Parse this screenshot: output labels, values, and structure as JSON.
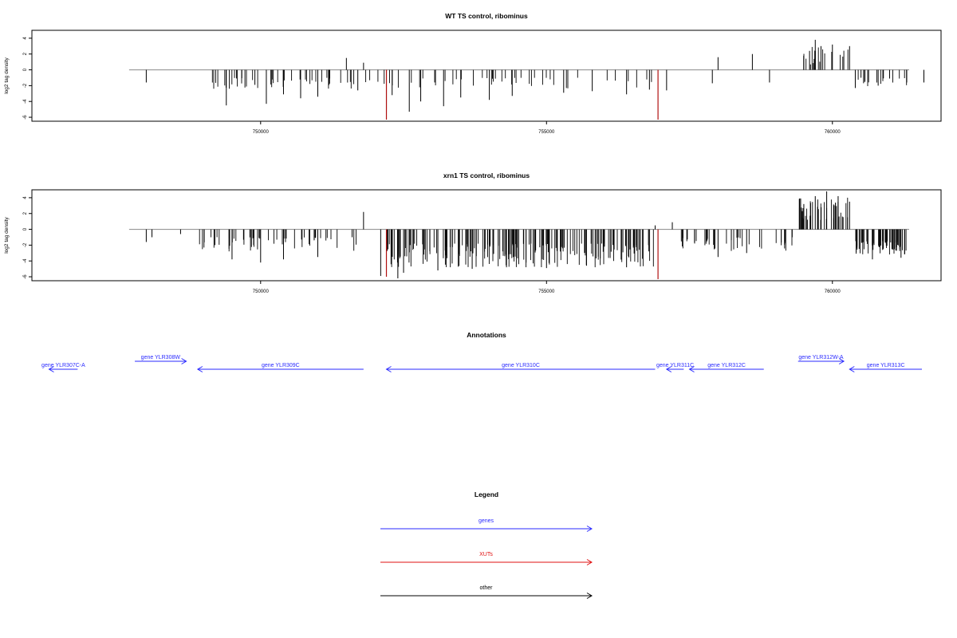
{
  "chart_data": [
    {
      "type": "bar",
      "title": "WT TS control, ribominus",
      "ylabel": "log2 tag density",
      "xlabel": "",
      "xlim": [
        746000,
        761900
      ],
      "ylim": [
        -6.5,
        5
      ],
      "x_ticks": [
        750000,
        755000,
        760000
      ],
      "x_tick_labels": [
        "750000",
        "755000",
        "760000"
      ],
      "y_ticks": [
        -6,
        -4,
        -2,
        0,
        2,
        4
      ],
      "y_tick_labels": [
        "-6",
        "-4",
        "-2",
        "0",
        "2",
        "4"
      ],
      "baseline": {
        "from": 747700,
        "to": 762700,
        "value": 0
      },
      "segments": [
        {
          "from": 749000,
          "to": 756900,
          "min": -2.4,
          "max": -1.0,
          "density": 0.011,
          "seed": 11
        },
        {
          "from": 759400,
          "to": 760300,
          "min": 0.6,
          "max": 3.0,
          "density": 0.02,
          "seed": 12
        },
        {
          "from": 760300,
          "to": 762700,
          "min": -2.1,
          "max": -1.0,
          "density": 0.006,
          "seed": 13
        }
      ],
      "bars": [
        {
          "x": 748000,
          "y": -1.6
        },
        {
          "x": 749400,
          "y": -4.5
        },
        {
          "x": 749900,
          "y": -1.9
        },
        {
          "x": 750100,
          "y": -4.3
        },
        {
          "x": 750400,
          "y": -3.1
        },
        {
          "x": 750700,
          "y": -3.6
        },
        {
          "x": 751000,
          "y": -3.4
        },
        {
          "x": 751500,
          "y": 1.5
        },
        {
          "x": 751700,
          "y": -2.6
        },
        {
          "x": 751800,
          "y": 0.9
        },
        {
          "x": 752200,
          "y": -5.0
        },
        {
          "x": 752300,
          "y": -3.2
        },
        {
          "x": 752600,
          "y": -5.3
        },
        {
          "x": 752800,
          "y": -4.0
        },
        {
          "x": 753200,
          "y": -4.6
        },
        {
          "x": 753500,
          "y": -3.5
        },
        {
          "x": 754000,
          "y": -3.8
        },
        {
          "x": 754400,
          "y": -3.3
        },
        {
          "x": 755300,
          "y": -2.9
        },
        {
          "x": 755800,
          "y": -2.7
        },
        {
          "x": 756400,
          "y": -3.1
        },
        {
          "x": 756800,
          "y": -2.5
        },
        {
          "x": 757100,
          "y": -2.6
        },
        {
          "x": 757900,
          "y": -1.7
        },
        {
          "x": 758000,
          "y": 1.6
        },
        {
          "x": 758600,
          "y": 2.0
        },
        {
          "x": 758900,
          "y": -1.6
        },
        {
          "x": 759600,
          "y": 2.4
        },
        {
          "x": 759700,
          "y": 3.8
        },
        {
          "x": 759800,
          "y": 3.0
        },
        {
          "x": 760000,
          "y": 3.2
        },
        {
          "x": 760300,
          "y": 3.0
        },
        {
          "x": 760400,
          "y": -2.3
        },
        {
          "x": 760500,
          "y": -1.0
        },
        {
          "x": 760800,
          "y": -2.0
        },
        {
          "x": 761000,
          "y": -1.1
        },
        {
          "x": 761300,
          "y": -1.6
        },
        {
          "x": 761600,
          "y": -1.6
        }
      ],
      "red_bars": [
        {
          "x": 752200,
          "y": -6.3
        },
        {
          "x": 756950,
          "y": -6.3
        }
      ]
    },
    {
      "type": "bar",
      "title": "xrn1 TS control, ribominus",
      "ylabel": "log2 tag density",
      "xlabel": "",
      "xlim": [
        746000,
        761900
      ],
      "ylim": [
        -6.5,
        5
      ],
      "x_ticks": [
        750000,
        755000,
        760000
      ],
      "x_tick_labels": [
        "750000",
        "755000",
        "760000"
      ],
      "y_ticks": [
        -6,
        -4,
        -2,
        0,
        2,
        4
      ],
      "y_tick_labels": [
        "-6",
        "-4",
        "-2",
        "0",
        "2",
        "4"
      ],
      "baseline": {
        "from": 747700,
        "to": 762700,
        "value": 0
      },
      "segments": [
        {
          "from": 748800,
          "to": 751800,
          "min": -2.8,
          "max": -1.0,
          "density": 0.018,
          "seed": 21
        },
        {
          "from": 752200,
          "to": 756900,
          "min": -4.8,
          "max": -1.8,
          "density": 0.045,
          "seed": 22
        },
        {
          "from": 757300,
          "to": 759300,
          "min": -2.8,
          "max": -1.0,
          "density": 0.02,
          "seed": 23
        },
        {
          "from": 759400,
          "to": 760300,
          "min": 1.0,
          "max": 4.0,
          "density": 0.05,
          "seed": 24
        },
        {
          "from": 760400,
          "to": 762700,
          "min": -3.2,
          "max": -1.5,
          "density": 0.03,
          "seed": 25
        }
      ],
      "bars": [
        {
          "x": 748000,
          "y": -1.6
        },
        {
          "x": 748100,
          "y": -1.0
        },
        {
          "x": 748600,
          "y": -0.6
        },
        {
          "x": 749200,
          "y": -2.0
        },
        {
          "x": 749500,
          "y": -3.8
        },
        {
          "x": 750000,
          "y": -4.2
        },
        {
          "x": 750400,
          "y": -3.8
        },
        {
          "x": 751000,
          "y": -3.5
        },
        {
          "x": 751600,
          "y": -1.0
        },
        {
          "x": 751800,
          "y": 2.2
        },
        {
          "x": 752100,
          "y": -5.9
        },
        {
          "x": 752400,
          "y": -6.2
        },
        {
          "x": 752500,
          "y": -5.5
        },
        {
          "x": 753100,
          "y": -5.2
        },
        {
          "x": 753700,
          "y": -5.0
        },
        {
          "x": 754300,
          "y": -4.8
        },
        {
          "x": 755000,
          "y": -4.9
        },
        {
          "x": 755700,
          "y": -4.6
        },
        {
          "x": 756400,
          "y": -4.8
        },
        {
          "x": 756900,
          "y": 0.5
        },
        {
          "x": 757200,
          "y": 0.9
        },
        {
          "x": 758000,
          "y": -3.5
        },
        {
          "x": 758500,
          "y": -3.0
        },
        {
          "x": 759500,
          "y": 3.2
        },
        {
          "x": 759700,
          "y": 4.2
        },
        {
          "x": 759900,
          "y": 4.8
        },
        {
          "x": 760100,
          "y": 4.2
        },
        {
          "x": 760300,
          "y": 3.5
        },
        {
          "x": 760700,
          "y": -3.8
        },
        {
          "x": 761200,
          "y": -3.6
        },
        {
          "x": 761900,
          "y": -3.2
        }
      ],
      "red_bars": [
        {
          "x": 752200,
          "y": -6.0
        },
        {
          "x": 756950,
          "y": -6.3
        }
      ]
    }
  ],
  "annotations": {
    "title": "Annotations",
    "genes": [
      {
        "label": "gene YLR307C-A",
        "from": 746300,
        "to": 746800,
        "dir": "left",
        "row": 1
      },
      {
        "label": "gene YLR308W",
        "from": 747800,
        "to": 748700,
        "dir": "right",
        "row": 0
      },
      {
        "label": "gene YLR309C",
        "from": 748900,
        "to": 751800,
        "dir": "left",
        "row": 1
      },
      {
        "label": "gene YLR310C",
        "from": 752200,
        "to": 756900,
        "dir": "left",
        "row": 1
      },
      {
        "label": "gene YLR311C",
        "from": 757100,
        "to": 757400,
        "dir": "left",
        "row": 1
      },
      {
        "label": "gene YLR312C",
        "from": 757500,
        "to": 758800,
        "dir": "left",
        "row": 1
      },
      {
        "label": "gene YLR312W-A",
        "from": 759400,
        "to": 760200,
        "dir": "right",
        "row": 0
      },
      {
        "label": "gene YLR313C",
        "from": 760300,
        "to": 762400,
        "dir": "left",
        "row": 1
      }
    ]
  },
  "legend": {
    "title": "Legend",
    "items": [
      {
        "label": "genes",
        "color": "#2a2aff"
      },
      {
        "label": "XUTs",
        "color": "#e01010"
      },
      {
        "label": "other",
        "color": "#000000"
      }
    ]
  },
  "colors": {
    "bar": "#000000",
    "red_bar": "#b01010",
    "baseline": "#888888",
    "gene": "#2a2aff"
  }
}
